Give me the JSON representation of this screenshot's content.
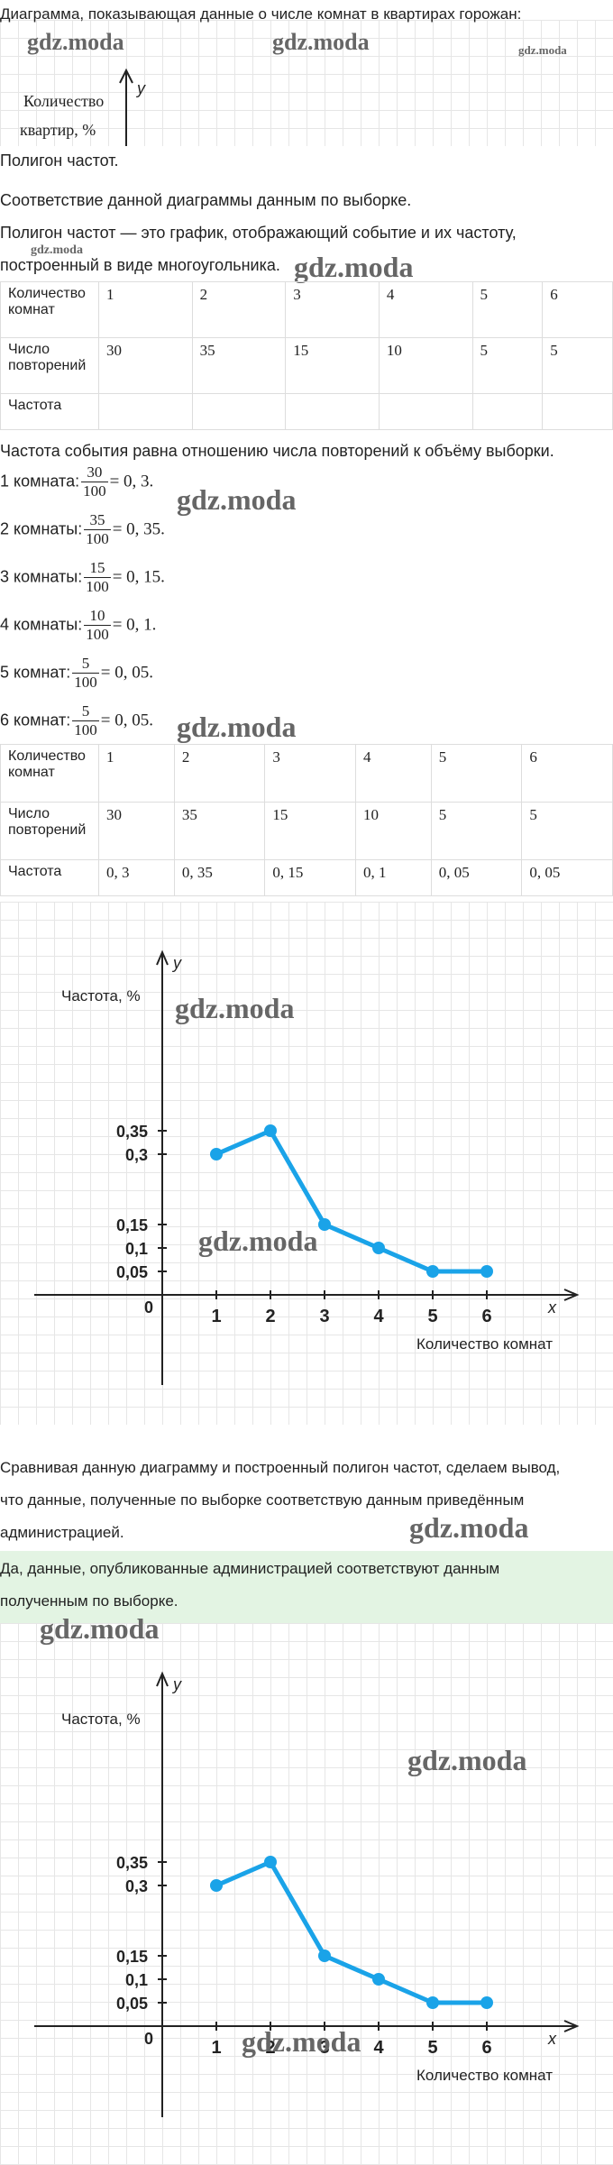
{
  "intro_text": "Диаграмма, показывающая данные о числе комнат в квартирах горожан:",
  "top_chart": {
    "y_axis_letter": "y",
    "y_label_line1": "Количество",
    "y_label_line2": "квартир, %"
  },
  "heading_polygon": "Полигон частот.",
  "line_match": "Соответствие данной диаграммы данным по выборке.",
  "definition_line1": "Полигон частот — это график, отображающий событие и их частоту,",
  "definition_line2": "построенный в виде многоугольника.",
  "table1": {
    "row_labels": [
      "Количество комнат",
      "Число повторений",
      "Частота"
    ],
    "rooms": [
      "1",
      "2",
      "3",
      "4",
      "5",
      "6"
    ],
    "repeats": [
      "30",
      "35",
      "15",
      "10",
      "5",
      "5"
    ],
    "freqs": [
      "",
      "",
      "",
      "",
      "",
      ""
    ]
  },
  "freq_rule": "Частота события равна отношению числа повторений к объёму выборки.",
  "calcs": [
    {
      "label": "1 комната:",
      "num": "30",
      "den": "100",
      "result": "= 0, 3."
    },
    {
      "label": "2 комнаты:",
      "num": "35",
      "den": "100",
      "result": "= 0, 35."
    },
    {
      "label": "3 комнаты:",
      "num": "15",
      "den": "100",
      "result": "= 0, 15."
    },
    {
      "label": "4 комнаты:",
      "num": "10",
      "den": "100",
      "result": "= 0, 1."
    },
    {
      "label": "5 комнат:",
      "num": "5",
      "den": "100",
      "result": "= 0, 05."
    },
    {
      "label": "6 комнат:",
      "num": "5",
      "den": "100",
      "result": "= 0, 05."
    }
  ],
  "table2": {
    "row_labels": [
      "Количество комнат",
      "Число повторений",
      "Частота"
    ],
    "rooms": [
      "1",
      "2",
      "3",
      "4",
      "5",
      "6"
    ],
    "repeats": [
      "30",
      "35",
      "15",
      "10",
      "5",
      "5"
    ],
    "freqs": [
      "0, 3",
      "0, 35",
      "0, 15",
      "0, 1",
      "0, 05",
      "0, 05"
    ]
  },
  "chart_data": [
    {
      "type": "line",
      "x": [
        1,
        2,
        3,
        4,
        5,
        6
      ],
      "y": [
        0.3,
        0.35,
        0.15,
        0.1,
        0.05,
        0.05
      ],
      "x_ticks": [
        "1",
        "2",
        "3",
        "4",
        "5",
        "6"
      ],
      "y_ticks": [
        "0,35",
        "0,3",
        "0,15",
        "0,1",
        "0,05"
      ],
      "y_tick_values": [
        0.35,
        0.3,
        0.15,
        0.1,
        0.05
      ],
      "origin_label": "0",
      "x_axis_letter": "x",
      "y_axis_letter": "y",
      "ylabel": "Частота, %",
      "xlabel": "Количество комнат",
      "line_color": "#1aa3e8",
      "grid": true
    },
    {
      "type": "line",
      "x": [
        1,
        2,
        3,
        4,
        5,
        6
      ],
      "y": [
        0.3,
        0.35,
        0.15,
        0.1,
        0.05,
        0.05
      ],
      "x_ticks": [
        "1",
        "2",
        "3",
        "4",
        "5",
        "6"
      ],
      "y_ticks": [
        "0,35",
        "0,3",
        "0,15",
        "0,1",
        "0,05"
      ],
      "y_tick_values": [
        0.35,
        0.3,
        0.15,
        0.1,
        0.05
      ],
      "origin_label": "0",
      "x_axis_letter": "x",
      "y_axis_letter": "y",
      "ylabel": "Частота, %",
      "xlabel": "Количество комнат",
      "line_color": "#1aa3e8",
      "grid": true
    }
  ],
  "conclusion_line1": "Сравнивая данную диаграмму и построенный полигон частот, сделаем вывод,",
  "conclusion_line2": "что данные, полученные по выборке соответствую данным приведённым",
  "conclusion_line3": "администрацией.",
  "answer_line1": "Да, данные, опубликованные администрацией соответствуют данным",
  "answer_line2": "полученным по выборке.",
  "watermark": "gdz.moda",
  "colors": {
    "accent_line": "#1aa3e8",
    "answer_bg": "#e3f4e3",
    "grid": "#e6e6e6"
  }
}
